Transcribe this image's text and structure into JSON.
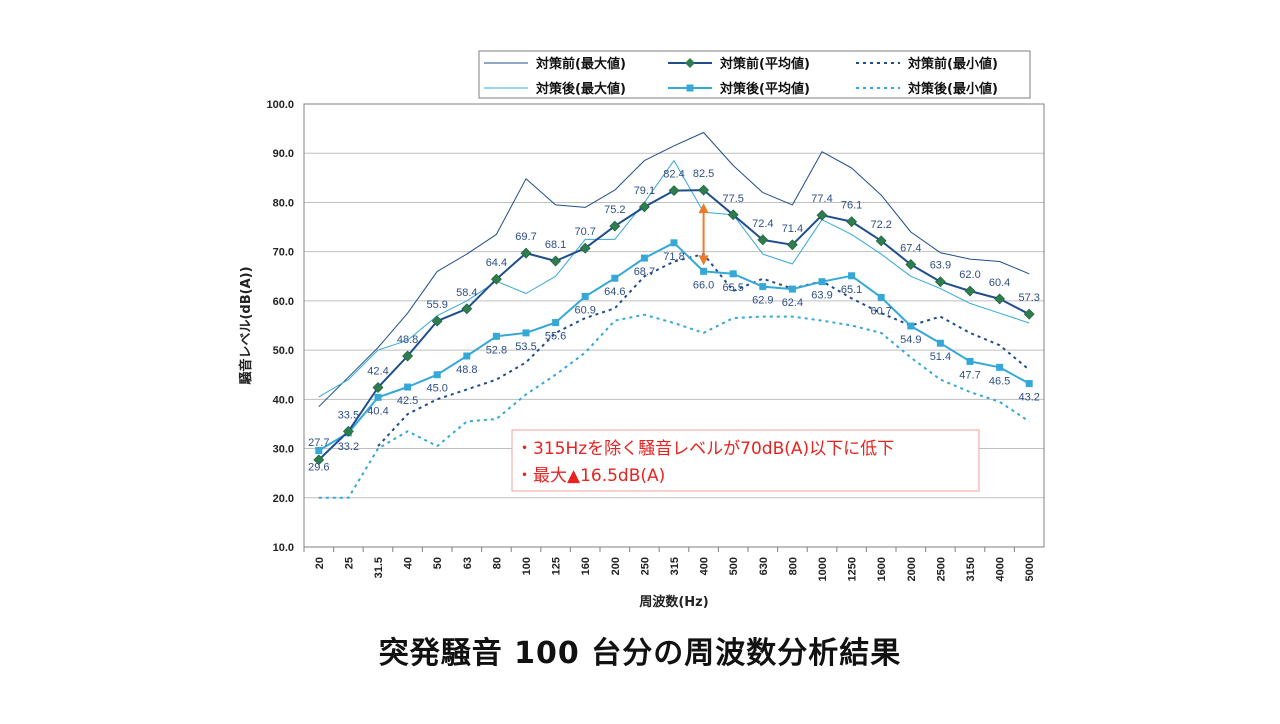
{
  "caption": "突発騒音 100 台分の周波数分析結果",
  "colors": {
    "before": "#1f4e8c",
    "before_avg_marker": "#2e7d4f",
    "after": "#35a8d8",
    "label": "#2d4f87",
    "note_text": "#e8231f",
    "note_border": "#f0a0a0",
    "arrow": "#ec7a2a",
    "grid": "#bfbfbf",
    "axis": "#808080"
  },
  "chart_data": {
    "type": "line",
    "title": "",
    "xlabel": "周波数(Hz)",
    "ylabel": "騒音レベル(dB(A))",
    "ylim": [
      10,
      100
    ],
    "yticks": [
      "10.0",
      "20.0",
      "30.0",
      "40.0",
      "50.0",
      "60.0",
      "70.0",
      "80.0",
      "90.0",
      "100.0"
    ],
    "grid": true,
    "legend_position": "top-right",
    "categories": [
      "20",
      "25",
      "31.5",
      "40",
      "50",
      "63",
      "80",
      "100",
      "125",
      "160",
      "200",
      "250",
      "315",
      "400",
      "500",
      "630",
      "800",
      "1000",
      "1250",
      "1600",
      "2000",
      "2500",
      "3150",
      "4000",
      "5000"
    ],
    "series": [
      {
        "name": "対策前(最大値)",
        "style": "thin-solid",
        "color": "#1f4e8c",
        "values": [
          38.5,
          44.5,
          50.5,
          57.5,
          66.0,
          69.5,
          73.5,
          84.8,
          79.5,
          79.0,
          82.5,
          88.5,
          91.5,
          94.2,
          87.5,
          82.0,
          79.5,
          90.3,
          87.0,
          81.5,
          74.0,
          69.8,
          68.5,
          68.0,
          65.5
        ]
      },
      {
        "name": "対策前(平均値)",
        "style": "solid-diamond",
        "color": "#1f4e8c",
        "values": [
          27.7,
          33.5,
          42.4,
          48.8,
          55.9,
          58.4,
          64.4,
          69.7,
          68.1,
          70.7,
          75.2,
          79.1,
          82.4,
          82.5,
          77.5,
          72.4,
          71.4,
          77.4,
          76.1,
          72.2,
          67.4,
          63.9,
          62.0,
          60.4,
          57.3
        ],
        "labels": [
          "27.7",
          "33.5",
          "42.4",
          "48.8",
          "55.9",
          "58.4",
          "64.4",
          "69.7",
          "68.1",
          "70.7",
          "75.2",
          "79.1",
          "82.4",
          "82.5",
          "77.5",
          "72.4",
          "71.4",
          "77.4",
          "76.1",
          "72.2",
          "67.4",
          "63.9",
          "62.0",
          "60.4",
          "57.3"
        ]
      },
      {
        "name": "対策前(最小値)",
        "style": "dotted",
        "color": "#1f4e8c",
        "values": [
          null,
          null,
          30.5,
          37.0,
          40.0,
          42.0,
          44.0,
          47.5,
          53.5,
          56.5,
          58.5,
          65.0,
          68.0,
          69.5,
          62.0,
          64.5,
          62.5,
          64.0,
          60.5,
          57.5,
          55.0,
          56.8,
          53.5,
          51.0,
          46.0
        ]
      },
      {
        "name": "対策後(最大値)",
        "style": "thin-solid",
        "color": "#35a8d8",
        "values": [
          40.5,
          44.0,
          50.0,
          52.0,
          57.0,
          60.0,
          64.0,
          61.5,
          65.0,
          72.5,
          72.5,
          80.0,
          88.5,
          78.0,
          77.5,
          69.5,
          67.5,
          76.5,
          73.5,
          69.5,
          65.0,
          62.5,
          59.5,
          57.5,
          55.5
        ]
      },
      {
        "name": "対策後(平均値)",
        "style": "solid-square",
        "color": "#35a8d8",
        "values": [
          29.6,
          33.2,
          40.4,
          42.5,
          45.0,
          48.8,
          52.8,
          53.5,
          55.6,
          60.9,
          64.6,
          68.7,
          71.8,
          66.0,
          65.5,
          62.9,
          62.4,
          63.9,
          65.1,
          60.7,
          54.9,
          51.4,
          47.7,
          46.5,
          43.2
        ],
        "labels": [
          "29.6",
          "33.2",
          "40.4",
          "42.5",
          "45.0",
          "48.8",
          "52.8",
          "53.5",
          "55.6",
          "60.9",
          "64.6",
          "68.7",
          "71.8",
          "66.0",
          "65.5",
          "62.9",
          "62.4",
          "63.9",
          "65.1",
          "60.7",
          "54.9",
          "51.4",
          "47.7",
          "46.5",
          "43.2"
        ]
      },
      {
        "name": "対策後(最小値)",
        "style": "dotted",
        "color": "#35a8d8",
        "values": [
          20.0,
          20.0,
          30.0,
          33.5,
          30.5,
          35.5,
          36.0,
          41.0,
          45.0,
          49.5,
          56.0,
          57.2,
          55.5,
          53.5,
          56.5,
          56.8,
          56.8,
          56.0,
          55.0,
          53.5,
          48.5,
          44.0,
          41.5,
          39.5,
          35.5
        ]
      }
    ],
    "annotation": {
      "lines": [
        "・315Hzを除く騒音レベルが70dB(A)以下に低下",
        "・最大▲16.5dB(A)"
      ],
      "arrow_category": "400",
      "arrow_from": 82.5,
      "arrow_to": 66.0
    }
  }
}
